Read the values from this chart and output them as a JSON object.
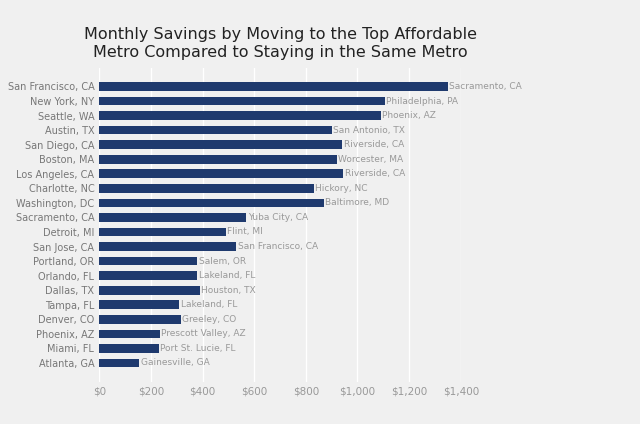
{
  "title": "Monthly Savings by Moving to the Top Affordable\nMetro Compared to Staying in the Same Metro",
  "categories": [
    "San Francisco, CA",
    "New York, NY",
    "Seattle, WA",
    "Austin, TX",
    "San Diego, CA",
    "Boston, MA",
    "Los Angeles, CA",
    "Charlotte, NC",
    "Washington, DC",
    "Sacramento, CA",
    "Detroit, MI",
    "San Jose, CA",
    "Portland, OR",
    "Orlando, FL",
    "Dallas, TX",
    "Tampa, FL",
    "Denver, CO",
    "Phoenix, AZ",
    "Miami, FL",
    "Atlanta, GA"
  ],
  "values": [
    1350,
    1105,
    1090,
    900,
    940,
    920,
    945,
    830,
    870,
    570,
    490,
    530,
    380,
    380,
    390,
    310,
    315,
    235,
    230,
    155
  ],
  "labels": [
    "Sacramento, CA",
    "Philadelphia, PA",
    "Phoenix, AZ",
    "San Antonio, TX",
    "Riverside, CA",
    "Worcester, MA",
    "Riverside, CA",
    "Hickory, NC",
    "Baltimore, MD",
    "Yuba City, CA",
    "Flint, MI",
    "San Francisco, CA",
    "Salem, OR",
    "Lakeland, FL",
    "Houston, TX",
    "Lakeland, FL",
    "Greeley, CO",
    "Prescott Valley, AZ",
    "Port St. Lucie, FL",
    "Gainesville, GA"
  ],
  "bar_color": "#1f3a6e",
  "background_color": "#f0f0f0",
  "xlim": [
    0,
    1400
  ],
  "xticks": [
    0,
    200,
    400,
    600,
    800,
    1000,
    1200,
    1400
  ],
  "title_fontsize": 11.5,
  "label_fontsize": 6.5,
  "tick_fontsize": 7.5,
  "ytick_fontsize": 7
}
